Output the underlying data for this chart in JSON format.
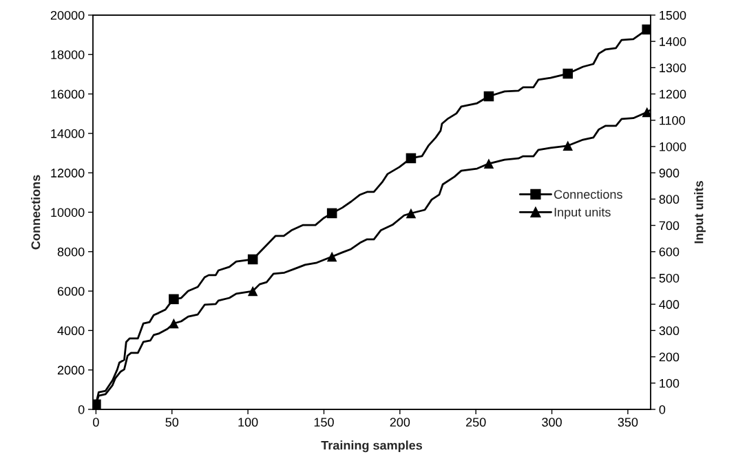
{
  "chart_data": {
    "type": "line",
    "xlabel": "Training samples",
    "ylabel": "Connections",
    "y2label": "Input units",
    "xlim": [
      -2,
      365
    ],
    "xticks": [
      0,
      50,
      100,
      150,
      200,
      250,
      300,
      350
    ],
    "ylim": [
      0,
      20000
    ],
    "yticks": [
      0,
      2000,
      4000,
      6000,
      8000,
      10000,
      12000,
      14000,
      16000,
      18000,
      20000
    ],
    "y2lim": [
      0,
      1500
    ],
    "y2ticks": [
      0,
      100,
      200,
      300,
      400,
      500,
      600,
      700,
      800,
      900,
      1000,
      1100,
      1200,
      1300,
      1400,
      1500
    ],
    "grid": false,
    "legend": "right",
    "line_style": "solid",
    "series": [
      {
        "name": "Connections",
        "color": "#000000",
        "marker": "none",
        "x": [
          0,
          1.8,
          6.3,
          10.9,
          14.0,
          15.4,
          18.6,
          19.9,
          22.2,
          27.6,
          31.2,
          35.3,
          38.0,
          41.2,
          45.7,
          48.0,
          51.2,
          56.1,
          60.6,
          67.0,
          71.5,
          74.2,
          78.8,
          80.6,
          87.8,
          92.3,
          103.2,
          118.2,
          123.6,
          128.6,
          136.3,
          144.4,
          149.8,
          155.3,
          162.1,
          167.9,
          173.8,
          178.4,
          182.9,
          188.3,
          191.9,
          199.6,
          207.3,
          214.6,
          218.7,
          223.6,
          226.8,
          227.7,
          231.3,
          237.2,
          240.4,
          250.8,
          258.5,
          268.9,
          278.0,
          281.1,
          287.9,
          291.1,
          299.2,
          310.5,
          320.5,
          327.3,
          330.9,
          335.4,
          342.2,
          345.9,
          353.6,
          362.6,
          364.9
        ],
        "values": [
          280,
          870,
          940,
          1470,
          2020,
          2370,
          2510,
          3420,
          3600,
          3600,
          4360,
          4430,
          4780,
          4890,
          5060,
          5300,
          5590,
          5650,
          6000,
          6210,
          6700,
          6810,
          6810,
          7050,
          7230,
          7500,
          7610,
          8800,
          8800,
          9080,
          9350,
          9350,
          9700,
          9950,
          10230,
          10540,
          10890,
          11030,
          11030,
          11520,
          11940,
          12290,
          12740,
          12850,
          13370,
          13790,
          14140,
          14490,
          14730,
          15010,
          15360,
          15530,
          15880,
          16130,
          16160,
          16340,
          16340,
          16720,
          16820,
          17030,
          17380,
          17520,
          18050,
          18260,
          18330,
          18740,
          18780,
          19270,
          19370
        ]
      },
      {
        "type": "scatter",
        "color": "#000000",
        "marker": "square",
        "x": [
          0,
          51.2,
          103.2,
          155.3,
          207.3,
          258.5,
          310.5,
          362.6
        ],
        "values": [
          250,
          5590,
          7610,
          9950,
          12740,
          15880,
          17030,
          19270
        ]
      },
      {
        "name": "Input units",
        "axis": "y2",
        "color": "#000000",
        "marker": "none",
        "x": [
          0,
          1.8,
          6.3,
          10.9,
          12.7,
          16.3,
          18.6,
          20.8,
          23.1,
          27.6,
          31.2,
          35.8,
          38.0,
          41.2,
          47.1,
          51.2,
          56.1,
          60.7,
          67.0,
          71.5,
          78.8,
          80.6,
          87.8,
          92.3,
          103.2,
          107.7,
          112.3,
          116.8,
          124.0,
          131.7,
          137.6,
          145.3,
          155.3,
          162.1,
          167.9,
          173.8,
          178.4,
          182.9,
          187.4,
          195.1,
          202.8,
          207.3,
          216.4,
          220.9,
          225.9,
          228.2,
          235.9,
          240.4,
          250.8,
          258.5,
          268.9,
          278.0,
          281.1,
          287.9,
          291.1,
          299.2,
          310.5,
          320.5,
          327.3,
          330.9,
          335.4,
          342.2,
          345.9,
          353.6,
          362.6,
          364.9
        ],
        "values": [
          20,
          52,
          58,
          92,
          118,
          144,
          152,
          204,
          215,
          215,
          257,
          262,
          283,
          288,
          306,
          327,
          335,
          353,
          361,
          398,
          401,
          414,
          424,
          440,
          450,
          476,
          484,
          516,
          520,
          537,
          550,
          558,
          581,
          597,
          610,
          634,
          647,
          647,
          681,
          702,
          738,
          746,
          759,
          798,
          817,
          856,
          885,
          908,
          916,
          935,
          950,
          955,
          963,
          963,
          987,
          995,
          1003,
          1026,
          1034,
          1065,
          1079,
          1079,
          1105,
          1108,
          1131,
          1139
        ]
      },
      {
        "type": "scatter",
        "axis": "y2",
        "color": "#000000",
        "marker": "triangle",
        "x": [
          51.2,
          103.2,
          155.3,
          207.3,
          258.5,
          310.5,
          362.6
        ],
        "values": [
          327,
          450,
          581,
          746,
          935,
          1003,
          1131
        ]
      }
    ]
  }
}
